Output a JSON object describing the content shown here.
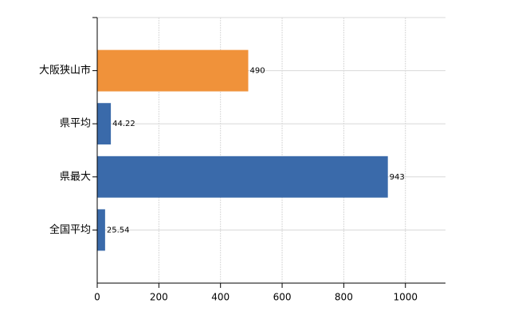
{
  "chart_data": {
    "type": "barh",
    "categories": [
      "大阪狭山市",
      "県平均",
      "県最大",
      "全国平均"
    ],
    "values": [
      490,
      44.22,
      943,
      25.54
    ],
    "colors": [
      "#f0923a",
      "#3a6aaa",
      "#3a6aaa",
      "#3a6aaa"
    ],
    "xlim": [
      0,
      1130
    ],
    "xticks": [
      0,
      200,
      400,
      600,
      800,
      1000
    ],
    "grid": true
  }
}
